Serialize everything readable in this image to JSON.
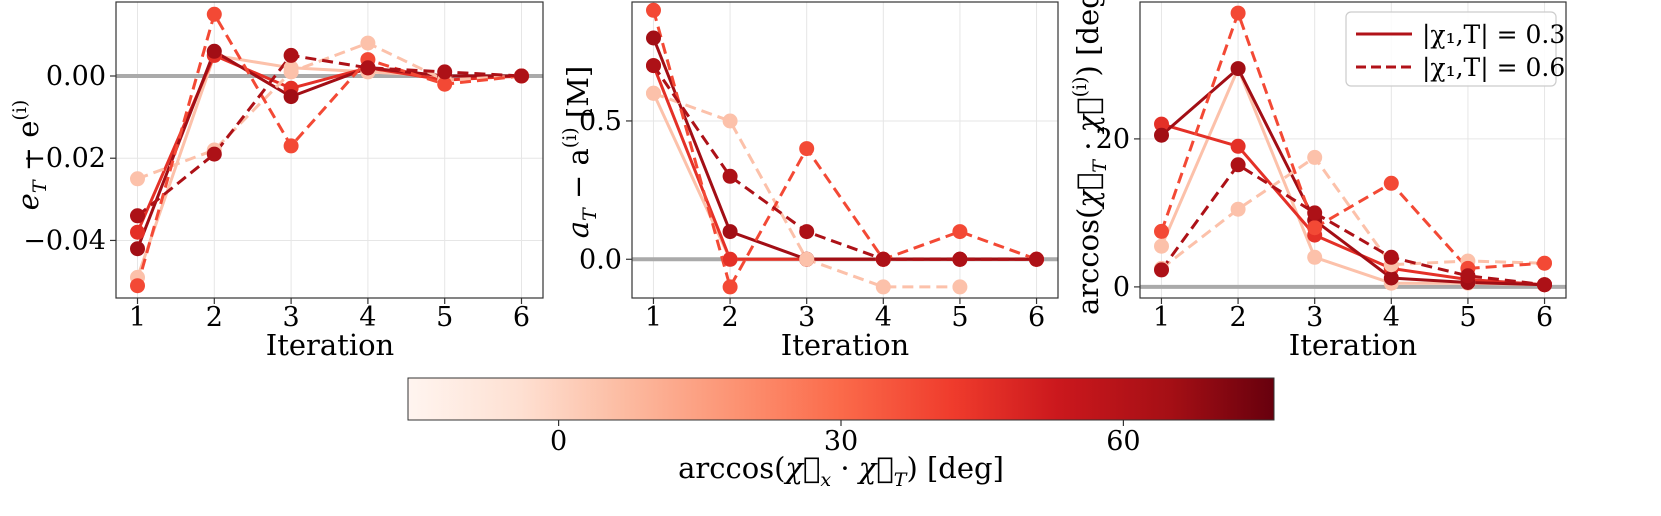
{
  "chart_data": [
    {
      "type": "line",
      "xlabel": "Iteration",
      "ylabel": "e_T − e^(i)",
      "ylabel_parts": {
        "base": "e",
        "sub": "T",
        "mid": " − e",
        "sup": "(i)"
      },
      "x": [
        1,
        2,
        3,
        4,
        5,
        6
      ],
      "xticks": [
        "1",
        "2",
        "3",
        "4",
        "5",
        "6"
      ],
      "ylim": [
        -0.054,
        0.018
      ],
      "yticks": [
        {
          "v": 0.0,
          "label": "0.00"
        },
        {
          "v": -0.02,
          "label": "−0.02"
        },
        {
          "v": -0.04,
          "label": "−0.04"
        }
      ],
      "reference_line": 0,
      "series": [
        {
          "angle": 5,
          "style": "solid",
          "values": [
            -0.049,
            0.005,
            0.002,
            0.001,
            0.0,
            0.0
          ]
        },
        {
          "angle": 45,
          "style": "solid",
          "values": [
            -0.038,
            0.005,
            -0.003,
            0.002,
            -0.001,
            0.0
          ]
        },
        {
          "angle": 65,
          "style": "solid",
          "values": [
            -0.042,
            0.006,
            -0.005,
            0.002,
            0.0,
            0.0
          ]
        },
        {
          "angle": 5,
          "style": "dashed",
          "values": [
            -0.025,
            -0.018,
            0.001,
            0.008,
            -0.001,
            0.0
          ]
        },
        {
          "angle": 38,
          "style": "dashed",
          "values": [
            -0.051,
            0.015,
            -0.017,
            0.004,
            -0.002,
            0.0
          ]
        },
        {
          "angle": 62,
          "style": "dashed",
          "values": [
            -0.034,
            -0.019,
            0.005,
            0.002,
            0.001,
            0.0
          ]
        }
      ]
    },
    {
      "type": "line",
      "xlabel": "Iteration",
      "ylabel": "a_T − a^(i) [M]",
      "ylabel_parts": {
        "base": "a",
        "sub": "T",
        "mid": " − a",
        "sup": "(i)",
        "tail": " [M]"
      },
      "x": [
        1,
        2,
        3,
        4,
        5,
        6
      ],
      "xticks": [
        "1",
        "2",
        "3",
        "4",
        "5",
        "6"
      ],
      "ylim": [
        -0.14,
        0.93
      ],
      "yticks": [
        {
          "v": 0.0,
          "label": "0.0"
        },
        {
          "v": 0.5,
          "label": "0.5"
        }
      ],
      "reference_line": 0,
      "series": [
        {
          "angle": 5,
          "style": "solid",
          "values": [
            0.6,
            0.0,
            0.0,
            0.0,
            0.0,
            0.0
          ]
        },
        {
          "angle": 45,
          "style": "solid",
          "values": [
            0.7,
            0.0,
            0.0,
            0.0,
            0.0,
            0.0
          ]
        },
        {
          "angle": 65,
          "style": "solid",
          "values": [
            0.8,
            0.1,
            0.0,
            0.0,
            0.0,
            0.0
          ]
        },
        {
          "angle": 5,
          "style": "dashed",
          "values": [
            0.6,
            0.5,
            0.0,
            -0.1,
            -0.1,
            null
          ]
        },
        {
          "angle": 38,
          "style": "dashed",
          "values": [
            0.9,
            -0.1,
            0.4,
            0.0,
            0.1,
            0.0
          ]
        },
        {
          "angle": 62,
          "style": "dashed",
          "values": [
            0.7,
            0.3,
            0.1,
            0.0,
            0.0,
            0.0
          ]
        }
      ]
    },
    {
      "type": "line",
      "xlabel": "Iteration",
      "ylabel": "arccos(χ⃗_T · χ⃗^(i)) [deg]",
      "ylabel_parts": {
        "pre": "arccos(",
        "vec1": "χ⃗",
        "sub": "T",
        "mid": " · ",
        "vec2": "χ⃗",
        "sup": "(i)",
        "tail": ") [deg]"
      },
      "x": [
        1,
        2,
        3,
        4,
        5,
        6
      ],
      "xticks": [
        "1",
        "2",
        "3",
        "4",
        "5",
        "6"
      ],
      "ylim": [
        -1.5,
        38.5
      ],
      "yticks": [
        {
          "v": 0,
          "label": "0"
        },
        {
          "v": 20,
          "label": "20"
        }
      ],
      "reference_line": 0,
      "legend": {
        "position": "top-right",
        "entries": [
          {
            "style": "solid",
            "label": "|χ₁,T| = 0.3"
          },
          {
            "style": "dashed",
            "label": "|χ₁,T| = 0.6"
          }
        ]
      },
      "series": [
        {
          "angle": 5,
          "style": "solid",
          "values": [
            5.5,
            29.5,
            4.0,
            0.5,
            0.5,
            0.3
          ]
        },
        {
          "angle": 45,
          "style": "solid",
          "values": [
            22.0,
            19.0,
            7.0,
            2.5,
            1.0,
            0.3
          ]
        },
        {
          "angle": 65,
          "style": "solid",
          "values": [
            20.5,
            29.5,
            9.0,
            1.2,
            0.6,
            0.3
          ]
        },
        {
          "angle": 5,
          "style": "dashed",
          "values": [
            2.5,
            10.5,
            17.5,
            3.0,
            3.5,
            3.2
          ]
        },
        {
          "angle": 38,
          "style": "dashed",
          "values": [
            7.5,
            37.0,
            8.0,
            14.0,
            2.5,
            3.2
          ]
        },
        {
          "angle": 62,
          "style": "dashed",
          "values": [
            2.3,
            16.5,
            10.0,
            4.0,
            1.5,
            0.3
          ]
        }
      ]
    }
  ],
  "colorbar": {
    "label": "arccos(χ⃗_x · χ⃗_T) [deg]",
    "label_parts": {
      "pre": "arccos(",
      "vec1": "χ⃗",
      "sub1": "x",
      "mid": " · ",
      "vec2": "χ⃗",
      "sub2": "T",
      "tail": ") [deg]"
    },
    "range": [
      -16,
      76
    ],
    "ticks": [
      {
        "v": 0,
        "label": "0"
      },
      {
        "v": 30,
        "label": "30"
      },
      {
        "v": 60,
        "label": "60"
      }
    ],
    "colormap": "Reds",
    "colors": {
      "low": "#fff5f0",
      "mid1": "#fcbba1",
      "mid2": "#fb6a4a",
      "mid3": "#cb181d",
      "high": "#67000d"
    }
  },
  "colors": {
    "reference_line": "#aaaaaa",
    "grid": "#e6e6e6",
    "axes": "#333333"
  }
}
